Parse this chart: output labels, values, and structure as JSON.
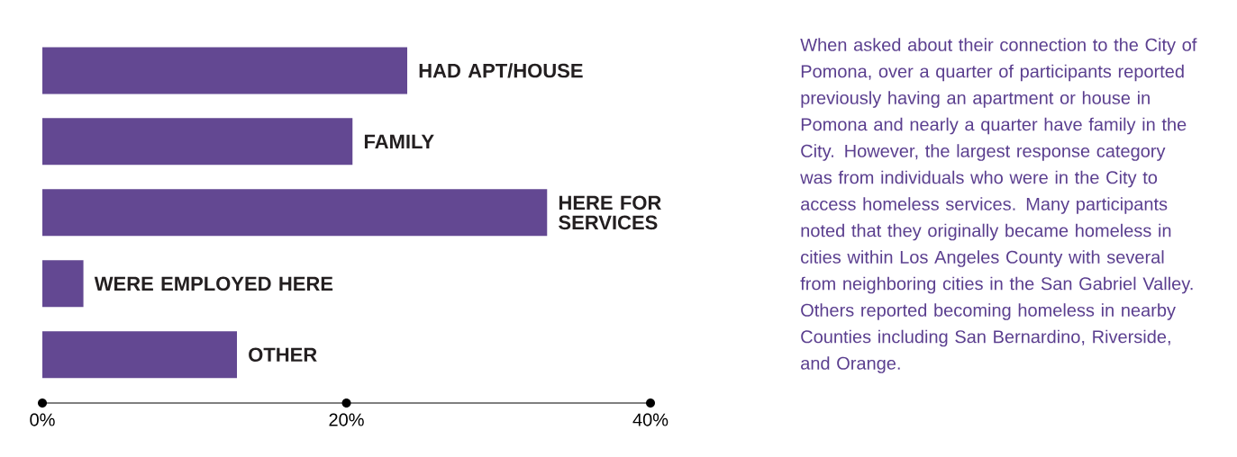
{
  "chart_data": {
    "type": "bar",
    "orientation": "horizontal",
    "categories": [
      "HAD APT/HOUSE",
      "FAMILY",
      "HERE FOR SERVICES",
      "WERE EMPLOYED HERE",
      "OTHER"
    ],
    "values": [
      24.0,
      20.4,
      33.2,
      2.7,
      12.8
    ],
    "color": "#634892",
    "xlim": [
      0,
      40
    ],
    "xticks": [
      {
        "value": 0,
        "label": "0%"
      },
      {
        "value": 20,
        "label": "20%"
      },
      {
        "value": 40,
        "label": "40%"
      }
    ],
    "annotations": [
      "When asked about their connection to the City of Pomona, over a quarter of participants reported previously having an apartment or house in Pomona and nearly a quarter have family in the City. However, the largest response category was from individuals who were in the City to access homeless services.  Many participants noted that they originally became homeless in cities within Los Angeles County with several from neighboring cities in the San Gabriel Valley.  Others reported becoming homeless in nearby Counties including San Bernardino, Riverside, and Orange."
    ]
  }
}
